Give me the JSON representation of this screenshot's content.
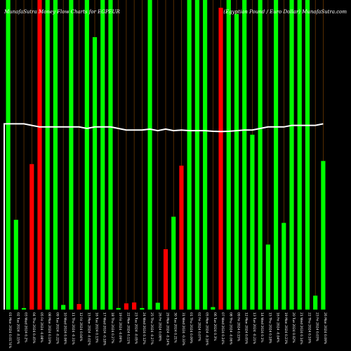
{
  "chart_data": {
    "type": "bar",
    "title_left": "MunafaSutra  Money Flow  Charts for EGPEUR",
    "title_right": "(Egyptian  Pound  /  Euro  Dollar)  MunafaSutra.com",
    "colors": {
      "background": "#000000",
      "up": "#00ff00",
      "down": "#ff0000",
      "gridline": "#8b4a00",
      "price_line": "#ffffff"
    },
    "ylim": [
      0,
      100
    ],
    "categories": [
      "01 Mon 2024 0.0174%",
      "02 Tue 2024 -0.15%",
      "03 Wed 2024 0.2%",
      "04 Thu 2024 0.45%",
      "05 Fri 2024 -0.08%",
      "08 Mon 2024 0.19%",
      "09 Tue 2024 -0.22%",
      "10 Wed 2024 0.06%",
      "11 Thu 2024 -0.31%",
      "12 Fri 2024 0.04%",
      "15 Mon 2024 -0.02%",
      "16 Tue 2024 0.13%",
      "17 Wed 2024 -0.18%",
      "18 Thu 2024 0.27%",
      "19 Fri 2024 -0.09%",
      "22 Mon 2024 0.11%",
      "23 Tue 2024 -0.05%",
      "24 Wed 2024 0.12%",
      "25 Thu 2024 -0.27%",
      "26 Fri 2024 0.08%",
      "29 Mon 2024 -0.14%",
      "30 Tue 2024 0.21%",
      "31 Wed 2024 -0.33%",
      "01 Thu 2024 0.09%",
      "02 Fri 2024 0.07%",
      "05 Mon 2024 -0.16%",
      "06 Tue 2024 0.3%",
      "07 Wed 2024 0.24%",
      "08 Thu 2024 -0.06%",
      "09 Fri 2024 0.15%",
      "12 Mon 2024 0.05%",
      "13 Tue 2024 -0.21%",
      "14 Wed 2024 0.1%",
      "15 Thu 2024 0.18%",
      "16 Fri 2024 -0.04%",
      "19 Mon 2024 0.23%",
      "20 Tue 2024 0.02%",
      "21 Wed 2024 0.14%",
      "22 Thu 2024 0.16%",
      "23 Fri 2024 0.03%",
      "26 Mon 2024 0.09%"
    ],
    "bars": [
      {
        "value": 100,
        "color": "up"
      },
      {
        "value": 29,
        "color": "up"
      },
      {
        "value": 0.5,
        "color": "up"
      },
      {
        "value": 47,
        "color": "down"
      },
      {
        "value": 100,
        "color": "down"
      },
      {
        "value": 100,
        "color": "up"
      },
      {
        "value": 100,
        "color": "up"
      },
      {
        "value": 1.5,
        "color": "up"
      },
      {
        "value": 100,
        "color": "up"
      },
      {
        "value": 1.8,
        "color": "down"
      },
      {
        "value": 100,
        "color": "up"
      },
      {
        "value": 88,
        "color": "up"
      },
      {
        "value": 100,
        "color": "up"
      },
      {
        "value": 100,
        "color": "up"
      },
      {
        "value": 0.5,
        "color": "up"
      },
      {
        "value": 2,
        "color": "down"
      },
      {
        "value": 2.3,
        "color": "down"
      },
      {
        "value": 0.5,
        "color": "up"
      },
      {
        "value": 100,
        "color": "up"
      },
      {
        "value": 2.2,
        "color": "up"
      },
      {
        "value": 19.5,
        "color": "down"
      },
      {
        "value": 30,
        "color": "up"
      },
      {
        "value": 46.5,
        "color": "down"
      },
      {
        "value": 100,
        "color": "up"
      },
      {
        "value": 100,
        "color": "up"
      },
      {
        "value": 100,
        "color": "up"
      },
      {
        "value": 0.8,
        "color": "up"
      },
      {
        "value": 97.5,
        "color": "down"
      },
      {
        "value": 100,
        "color": "up"
      },
      {
        "value": 95.5,
        "color": "up"
      },
      {
        "value": 100,
        "color": "up"
      },
      {
        "value": 56.5,
        "color": "up"
      },
      {
        "value": 100,
        "color": "up"
      },
      {
        "value": 21,
        "color": "up"
      },
      {
        "value": 100,
        "color": "up"
      },
      {
        "value": 28,
        "color": "up"
      },
      {
        "value": 100,
        "color": "up"
      },
      {
        "value": 100,
        "color": "up"
      },
      {
        "value": 100,
        "color": "up"
      },
      {
        "value": 4.5,
        "color": "up"
      },
      {
        "value": 48,
        "color": "up"
      }
    ],
    "price_line": [
      60,
      60,
      60,
      59.5,
      59,
      59,
      59,
      59,
      59,
      59,
      58.5,
      59,
      59,
      59,
      58.5,
      58,
      58,
      58,
      58.3,
      57.8,
      58.3,
      57.8,
      58,
      57.8,
      57.8,
      57.8,
      57.6,
      57.5,
      57.6,
      57.8,
      58,
      58,
      58.5,
      59,
      59,
      59,
      59.5,
      59.5,
      59.5,
      59.5,
      60
    ]
  }
}
